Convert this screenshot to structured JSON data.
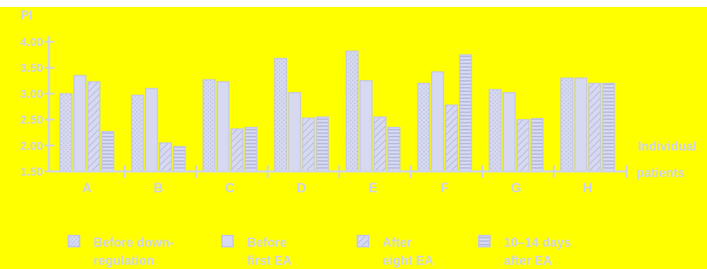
{
  "chart_data": {
    "type": "bar",
    "ylabel": "PI",
    "xlabel_line1": "Individual",
    "xlabel_line2": "patients",
    "categories": [
      "A",
      "B",
      "C",
      "D",
      "E",
      "F",
      "G",
      "H"
    ],
    "yticks": [
      "1.50",
      "2.00",
      "2.50",
      "3.00",
      "3.50",
      "4.00"
    ],
    "ylim": [
      1.5,
      4.0
    ],
    "grid": false,
    "legend_position": "bottom",
    "series": [
      {
        "name_line1": "Before down-",
        "name_line2": "regulation",
        "pattern": "dots",
        "values": [
          3.0,
          2.97,
          3.27,
          3.68,
          3.82,
          3.2,
          3.08,
          3.3
        ]
      },
      {
        "name_line1": "Before",
        "name_line2": "first EA",
        "pattern": "plain",
        "values": [
          3.35,
          3.1,
          3.23,
          3.02,
          3.25,
          3.42,
          3.02,
          3.3
        ]
      },
      {
        "name_line1": "After",
        "name_line2": "eight EA",
        "pattern": "diagonal",
        "values": [
          3.23,
          2.05,
          2.32,
          2.53,
          2.55,
          2.78,
          2.5,
          3.2
        ]
      },
      {
        "name_line1": "10–14 days",
        "name_line2": "after EA",
        "pattern": "horizontal",
        "values": [
          2.27,
          1.98,
          2.35,
          2.55,
          2.35,
          3.75,
          2.52,
          3.2
        ]
      }
    ],
    "colors": {
      "background": "#ffff00",
      "bar_fill": "#d6d9f0",
      "bar_stroke": "#c2c6e6",
      "axis": "#cfd3ea",
      "pattern": "#aeb3d8"
    }
  }
}
